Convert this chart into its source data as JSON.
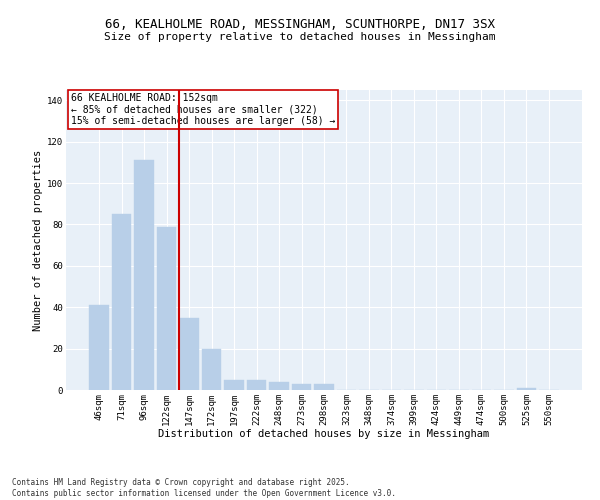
{
  "title_line1": "66, KEALHOLME ROAD, MESSINGHAM, SCUNTHORPE, DN17 3SX",
  "title_line2": "Size of property relative to detached houses in Messingham",
  "xlabel": "Distribution of detached houses by size in Messingham",
  "ylabel": "Number of detached properties",
  "categories": [
    "46sqm",
    "71sqm",
    "96sqm",
    "122sqm",
    "147sqm",
    "172sqm",
    "197sqm",
    "222sqm",
    "248sqm",
    "273sqm",
    "298sqm",
    "323sqm",
    "348sqm",
    "374sqm",
    "399sqm",
    "424sqm",
    "449sqm",
    "474sqm",
    "500sqm",
    "525sqm",
    "550sqm"
  ],
  "values": [
    41,
    85,
    111,
    79,
    35,
    20,
    5,
    5,
    4,
    3,
    3,
    0,
    0,
    0,
    0,
    0,
    0,
    0,
    0,
    1,
    0
  ],
  "bar_color": "#b8cfe8",
  "bar_edgecolor": "#b8cfe8",
  "vline_color": "#cc0000",
  "annotation_text": "66 KEALHOLME ROAD: 152sqm\n← 85% of detached houses are smaller (322)\n15% of semi-detached houses are larger (58) →",
  "annotation_box_color": "#cc0000",
  "ylim": [
    0,
    145
  ],
  "yticks": [
    0,
    20,
    40,
    60,
    80,
    100,
    120,
    140
  ],
  "background_color": "#e8f0f8",
  "grid_color": "#ffffff",
  "footer_line1": "Contains HM Land Registry data © Crown copyright and database right 2025.",
  "footer_line2": "Contains public sector information licensed under the Open Government Licence v3.0.",
  "title_fontsize": 9,
  "subtitle_fontsize": 8,
  "axis_label_fontsize": 7.5,
  "tick_fontsize": 6.5,
  "annotation_fontsize": 7,
  "footer_fontsize": 5.5
}
